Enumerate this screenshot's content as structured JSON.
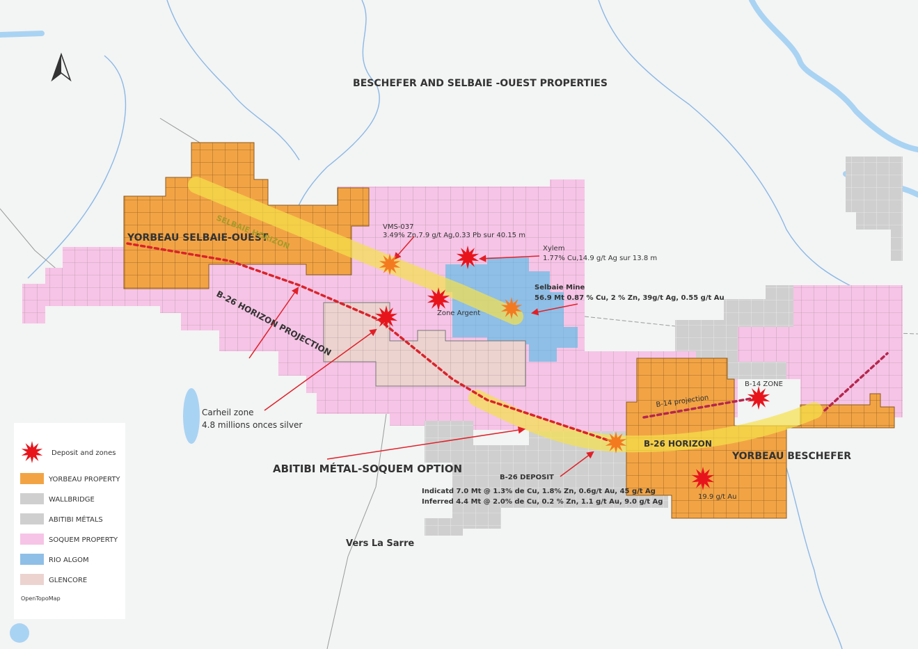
{
  "title": "BESCHEFER AND SELBAIE -OUEST PROPERTIES",
  "labels": {
    "yorbeau_selbaie": "YORBEAU SELBAIE-OUEST",
    "selbaie_horizon": "SELBAIE HORIZON",
    "b26_projection": "B-26 HORIZON PROJECTION",
    "vms037": [
      "VMS-037",
      "3.49% Zn,7.9 g/t Ag,0.33 Pb sur 40.15 m"
    ],
    "xylem": [
      "Xylem",
      "1.77% Cu,14.9 g/t Ag sur 13.8 m"
    ],
    "selbaie_mine": [
      "Selbaie Mine",
      "56.9 Mt 0.87 % Cu, 2 % Zn, 39g/t Ag, 0.55 g/t Au"
    ],
    "zone_argent": "Zone Argent",
    "carheil": [
      "Carheil zone",
      "4.8 millions onces silver"
    ],
    "option": "ABITIBI MÉTAL-SOQUEM OPTION",
    "b26_deposit": [
      "B-26 DEPOSIT",
      "Indicatd 7.0 Mt @ 1.3% de Cu, 1.8% Zn, 0.6g/t Au, 45 g/t Ag",
      "Inferred 4.4 Mt @ 2.0% de Cu, 0.2 % Zn, 1.1 g/t Au, 9.0 g/t Ag"
    ],
    "b14_zone": "B-14 ZONE",
    "b14_projection": "B-14 projection",
    "b26_horizon": "B-26 HORIZON",
    "yorbeau_beschefer": "YORBEAU BESCHEFER",
    "gold": "19.9 g/t Au",
    "la_sarre": "Vers La Sarre"
  },
  "legend": {
    "items": [
      "Deposit and zones",
      "YORBEAU PROPERTY",
      "WALLBRIDGE",
      "ABITIBI MÉTALS",
      "SOQUEM PROPERTY",
      "RIO ALGOM",
      "GLENCORE"
    ],
    "credit": "OpenTopoMap"
  }
}
